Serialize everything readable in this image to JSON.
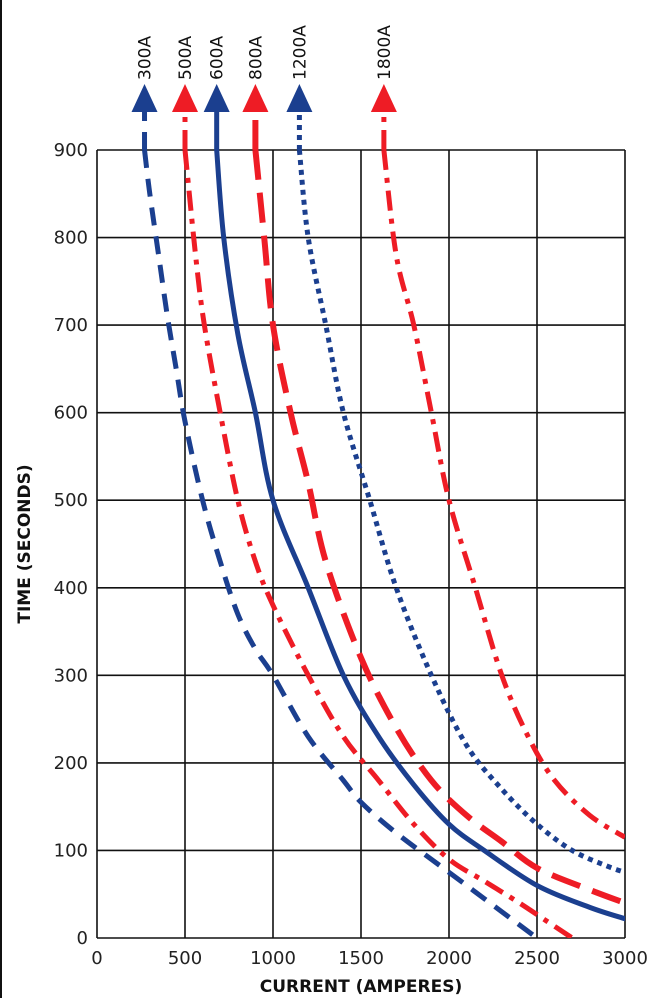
{
  "chart_data": {
    "type": "line",
    "title": "",
    "xlabel": "CURRENT (AMPERES)",
    "ylabel": "TIME (SECONDS)",
    "xlim": [
      0,
      3000
    ],
    "ylim": [
      0,
      900
    ],
    "x_ticks": [
      0,
      500,
      1000,
      1500,
      2000,
      2500,
      3000
    ],
    "y_ticks": [
      0,
      100,
      200,
      300,
      400,
      500,
      600,
      700,
      800,
      900
    ],
    "grid": true,
    "colors": {
      "red": "#ee1c25",
      "blue": "#1b3f8f",
      "grid": "#111111"
    },
    "series": [
      {
        "name": "300A",
        "color": "#1b3f8f",
        "dash": "dashed",
        "points": [
          [
            270,
            900
          ],
          [
            300,
            850
          ],
          [
            350,
            780
          ],
          [
            400,
            710
          ],
          [
            450,
            650
          ],
          [
            500,
            590
          ],
          [
            600,
            500
          ],
          [
            700,
            430
          ],
          [
            800,
            370
          ],
          [
            900,
            330
          ],
          [
            1000,
            300
          ],
          [
            1200,
            230
          ],
          [
            1400,
            180
          ],
          [
            1500,
            155
          ],
          [
            1700,
            120
          ],
          [
            2000,
            75
          ],
          [
            2200,
            45
          ],
          [
            2400,
            15
          ],
          [
            2500,
            0
          ]
        ]
      },
      {
        "name": "500A",
        "color": "#ee1c25",
        "dash": "dash-dot",
        "points": [
          [
            500,
            900
          ],
          [
            560,
            780
          ],
          [
            610,
            700
          ],
          [
            700,
            600
          ],
          [
            800,
            500
          ],
          [
            900,
            430
          ],
          [
            1000,
            380
          ],
          [
            1200,
            300
          ],
          [
            1400,
            230
          ],
          [
            1600,
            180
          ],
          [
            1800,
            130
          ],
          [
            2000,
            90
          ],
          [
            2200,
            65
          ],
          [
            2400,
            40
          ],
          [
            2550,
            20
          ],
          [
            2700,
            0
          ]
        ]
      },
      {
        "name": "600A",
        "color": "#1b3f8f",
        "dash": "solid",
        "points": [
          [
            680,
            900
          ],
          [
            720,
            800
          ],
          [
            800,
            690
          ],
          [
            900,
            600
          ],
          [
            1000,
            500
          ],
          [
            1200,
            400
          ],
          [
            1400,
            300
          ],
          [
            1600,
            230
          ],
          [
            1800,
            175
          ],
          [
            2000,
            130
          ],
          [
            2200,
            100
          ],
          [
            2500,
            60
          ],
          [
            2800,
            35
          ],
          [
            3000,
            22
          ]
        ]
      },
      {
        "name": "800A",
        "color": "#ee1c25",
        "dash": "long-dash",
        "points": [
          [
            900,
            900
          ],
          [
            950,
            800
          ],
          [
            1000,
            700
          ],
          [
            1100,
            600
          ],
          [
            1200,
            520
          ],
          [
            1300,
            430
          ],
          [
            1500,
            320
          ],
          [
            1700,
            240
          ],
          [
            1900,
            180
          ],
          [
            2100,
            140
          ],
          [
            2300,
            110
          ],
          [
            2500,
            80
          ],
          [
            2800,
            55
          ],
          [
            3000,
            40
          ]
        ]
      },
      {
        "name": "1200A",
        "color": "#1b3f8f",
        "dash": "dotted",
        "points": [
          [
            1150,
            900
          ],
          [
            1200,
            800
          ],
          [
            1300,
            700
          ],
          [
            1400,
            600
          ],
          [
            1550,
            500
          ],
          [
            1700,
            400
          ],
          [
            1900,
            300
          ],
          [
            2100,
            220
          ],
          [
            2300,
            170
          ],
          [
            2500,
            130
          ],
          [
            2700,
            100
          ],
          [
            2900,
            82
          ],
          [
            3000,
            75
          ]
        ]
      },
      {
        "name": "1800A",
        "color": "#ee1c25",
        "dash": "dash-dot",
        "points": [
          [
            1630,
            900
          ],
          [
            1700,
            780
          ],
          [
            1800,
            700
          ],
          [
            1900,
            600
          ],
          [
            2000,
            500
          ],
          [
            2150,
            400
          ],
          [
            2300,
            300
          ],
          [
            2450,
            230
          ],
          [
            2600,
            180
          ],
          [
            2800,
            140
          ],
          [
            3000,
            115
          ]
        ]
      }
    ]
  }
}
